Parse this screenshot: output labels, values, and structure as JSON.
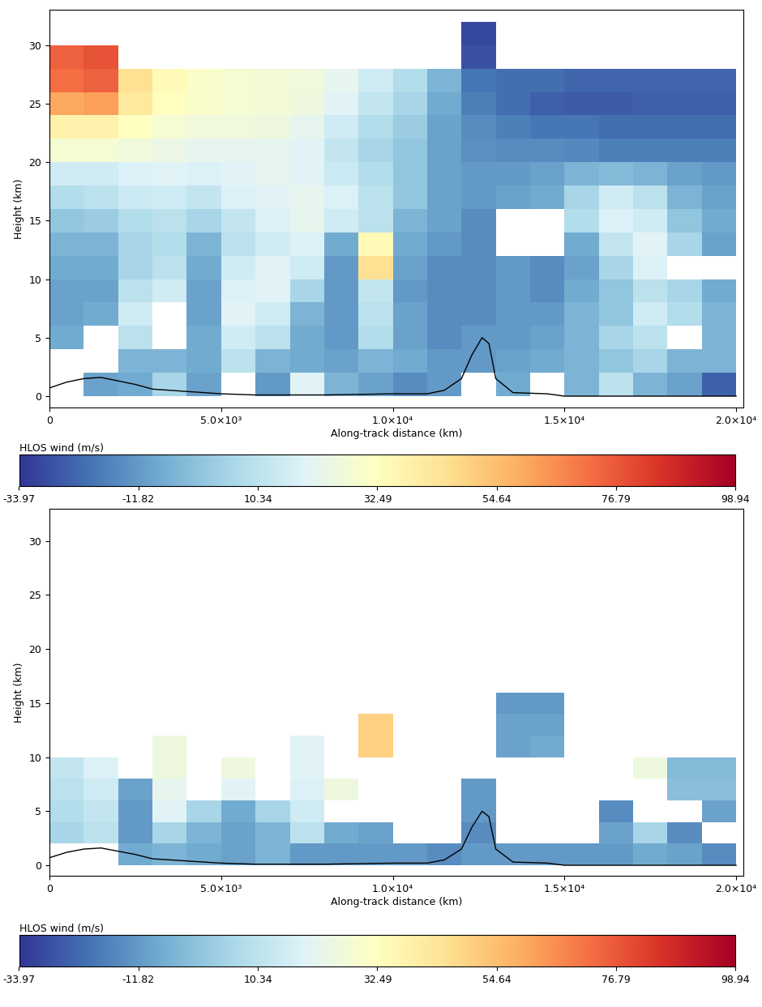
{
  "chart_data": [
    {
      "type": "heatmap",
      "xlabel": "Along-track distance (km)",
      "ylabel": "Height (km)",
      "xlim": [
        0,
        20200
      ],
      "ylim": [
        -1,
        33
      ],
      "xticks": [
        0,
        {
          "value": 5000,
          "label": "5.0×10³"
        },
        {
          "value": 10000,
          "label": "1.0×10⁴"
        },
        {
          "value": 15000,
          "label": "1.5×10⁴"
        },
        {
          "value": 20000,
          "label": "2.0×10⁴"
        }
      ],
      "yticks": [
        0,
        5,
        10,
        15,
        20,
        25,
        30
      ],
      "x_edges": [
        0,
        1000,
        2000,
        3000,
        4000,
        5000,
        6000,
        7000,
        8000,
        9000,
        10000,
        11000,
        12000,
        13000,
        14000,
        15000,
        16000,
        17000,
        18000,
        19000,
        20000
      ],
      "y_edges": [
        0,
        2,
        4,
        6,
        8,
        10,
        12,
        14,
        16,
        18,
        20,
        22,
        24,
        26,
        28,
        30,
        32
      ],
      "values": [
        [
          null,
          -10,
          -8,
          5,
          -10,
          null,
          -12,
          20,
          -5,
          -10,
          -15,
          -12,
          null,
          -8,
          null,
          -5,
          10,
          -5,
          -10,
          -25
        ],
        [
          null,
          null,
          -5,
          -5,
          -8,
          10,
          -5,
          -8,
          -10,
          -5,
          -8,
          -12,
          -12,
          -10,
          -8,
          -5,
          0,
          5,
          -5,
          -5
        ],
        [
          -8,
          null,
          10,
          null,
          -8,
          15,
          10,
          -8,
          -12,
          8,
          -10,
          -15,
          -12,
          -12,
          -10,
          -5,
          5,
          10,
          null,
          -5
        ],
        [
          -10,
          -8,
          15,
          null,
          -10,
          20,
          15,
          -5,
          -12,
          10,
          -10,
          -15,
          -15,
          -12,
          -12,
          -5,
          0,
          15,
          8,
          -5
        ],
        [
          -10,
          -10,
          10,
          15,
          -10,
          18,
          20,
          5,
          -12,
          12,
          -12,
          -15,
          -15,
          -12,
          -15,
          -8,
          0,
          10,
          5,
          -8
        ],
        [
          -8,
          -8,
          5,
          10,
          -8,
          15,
          20,
          15,
          -12,
          45,
          -10,
          -15,
          -15,
          -12,
          -15,
          -10,
          5,
          18,
          null,
          null
        ],
        [
          -5,
          -5,
          5,
          8,
          -5,
          10,
          15,
          18,
          -8,
          35,
          -8,
          -12,
          -15,
          null,
          null,
          -8,
          12,
          20,
          5,
          -10
        ],
        [
          0,
          2,
          8,
          10,
          5,
          12,
          18,
          22,
          15,
          10,
          -5,
          -10,
          -15,
          null,
          null,
          8,
          18,
          15,
          0,
          -8
        ],
        [
          8,
          10,
          14,
          15,
          12,
          18,
          20,
          22,
          18,
          10,
          0,
          -10,
          -12,
          -10,
          -8,
          5,
          15,
          10,
          -5,
          -10
        ],
        [
          15,
          15,
          18,
          20,
          18,
          20,
          22,
          20,
          14,
          8,
          0,
          -10,
          -12,
          -12,
          -10,
          -5,
          -3,
          -5,
          -10,
          -12
        ],
        [
          28,
          28,
          26,
          24,
          22,
          22,
          22,
          20,
          12,
          5,
          0,
          -10,
          -14,
          -15,
          -15,
          -16,
          -18,
          -18,
          -18,
          -18
        ],
        [
          38,
          38,
          32,
          28,
          26,
          26,
          25,
          22,
          15,
          8,
          2,
          -10,
          -15,
          -18,
          -20,
          -20,
          -22,
          -22,
          -22,
          -22
        ],
        [
          60,
          62,
          42,
          33,
          30,
          28,
          27,
          25,
          20,
          12,
          5,
          -8,
          -18,
          -22,
          -25,
          -26,
          -26,
          -25,
          -25,
          -25
        ],
        [
          72,
          75,
          45,
          35,
          30,
          28,
          27,
          26,
          22,
          15,
          8,
          -5,
          -20,
          -22,
          -22,
          -24,
          -24,
          -24,
          -24,
          -24
        ],
        [
          75,
          78,
          null,
          null,
          null,
          null,
          null,
          null,
          null,
          null,
          null,
          null,
          -28,
          null,
          null,
          null,
          null,
          null,
          null,
          null
        ],
        [
          null,
          null,
          null,
          null,
          null,
          null,
          null,
          null,
          null,
          null,
          null,
          null,
          -30,
          null,
          null,
          null,
          null,
          null,
          null,
          null
        ]
      ],
      "terrain": {
        "color": "#000000",
        "x": [
          0,
          500,
          1000,
          1500,
          2000,
          2500,
          3000,
          3500,
          4000,
          5000,
          6000,
          8000,
          10000,
          11000,
          11500,
          12000,
          12300,
          12600,
          12800,
          13000,
          13500,
          14500,
          15000,
          20000
        ],
        "y": [
          0.7,
          1.2,
          1.5,
          1.6,
          1.3,
          1.0,
          0.6,
          0.5,
          0.4,
          0.2,
          0.1,
          0.1,
          0.2,
          0.2,
          0.5,
          1.5,
          3.5,
          5.0,
          4.5,
          1.5,
          0.3,
          0.2,
          0.0,
          0.0
        ]
      },
      "colorbar": {
        "label": "HLOS wind (m/s)",
        "range": [
          -33.97,
          98.94
        ],
        "ticks": [
          -33.97,
          -11.82,
          10.34,
          32.49,
          54.64,
          76.79,
          98.94
        ]
      }
    },
    {
      "type": "heatmap",
      "xlabel": "Along-track distance (km)",
      "ylabel": "Height (km)",
      "xlim": [
        0,
        20200
      ],
      "ylim": [
        -1,
        33
      ],
      "xticks": [
        0,
        {
          "value": 5000,
          "label": "5.0×10³"
        },
        {
          "value": 10000,
          "label": "1.0×10⁴"
        },
        {
          "value": 15000,
          "label": "1.5×10⁴"
        },
        {
          "value": 20000,
          "label": "2.0×10⁴"
        }
      ],
      "yticks": [
        0,
        5,
        10,
        15,
        20,
        25,
        30
      ],
      "x_edges": [
        0,
        1000,
        2000,
        3000,
        4000,
        5000,
        6000,
        7000,
        8000,
        9000,
        10000,
        11000,
        12000,
        13000,
        14000,
        15000,
        16000,
        17000,
        18000,
        19000,
        20000
      ],
      "y_edges": [
        0,
        2,
        4,
        6,
        8,
        10,
        12,
        14,
        16
      ],
      "values": [
        [
          null,
          null,
          -8,
          -5,
          -8,
          -10,
          -5,
          -12,
          -12,
          -12,
          -12,
          -15,
          -12,
          -12,
          -12,
          -12,
          -12,
          -8,
          -10,
          -15
        ],
        [
          5,
          10,
          -12,
          5,
          -5,
          -10,
          -5,
          10,
          -8,
          -10,
          null,
          null,
          -15,
          null,
          null,
          null,
          -10,
          5,
          -15,
          null
        ],
        [
          8,
          12,
          -12,
          20,
          5,
          -8,
          5,
          15,
          null,
          null,
          null,
          null,
          -12,
          null,
          null,
          null,
          -15,
          null,
          null,
          -10
        ],
        [
          10,
          15,
          -10,
          22,
          null,
          20,
          null,
          18,
          25,
          null,
          null,
          null,
          -12,
          null,
          null,
          null,
          null,
          null,
          -2,
          -2
        ],
        [
          12,
          18,
          null,
          25,
          null,
          25,
          null,
          20,
          null,
          null,
          null,
          null,
          null,
          null,
          null,
          null,
          null,
          25,
          -3,
          -3
        ],
        [
          null,
          null,
          null,
          25,
          null,
          null,
          null,
          20,
          null,
          50,
          null,
          null,
          null,
          -10,
          -8,
          null,
          null,
          null,
          null,
          null
        ],
        [
          null,
          null,
          null,
          null,
          null,
          null,
          null,
          null,
          null,
          50,
          null,
          null,
          null,
          -10,
          -10,
          null,
          null,
          null,
          null,
          null
        ],
        [
          null,
          null,
          null,
          null,
          null,
          null,
          null,
          null,
          null,
          null,
          null,
          null,
          null,
          -12,
          -12,
          null,
          null,
          null,
          null,
          null
        ]
      ],
      "terrain": {
        "color": "#000000",
        "x": [
          0,
          500,
          1000,
          1500,
          2000,
          2500,
          3000,
          3500,
          4000,
          5000,
          6000,
          8000,
          10000,
          11000,
          11500,
          12000,
          12300,
          12600,
          12800,
          13000,
          13500,
          14500,
          15000,
          20000
        ],
        "y": [
          0.7,
          1.2,
          1.5,
          1.6,
          1.3,
          1.0,
          0.6,
          0.5,
          0.4,
          0.2,
          0.1,
          0.1,
          0.2,
          0.2,
          0.5,
          1.5,
          3.5,
          5.0,
          4.5,
          1.5,
          0.3,
          0.2,
          0.0,
          0.0
        ]
      },
      "colorbar": {
        "label": "HLOS wind (m/s)",
        "range": [
          -33.97,
          98.94
        ],
        "ticks": [
          -33.97,
          -11.82,
          10.34,
          32.49,
          54.64,
          76.79,
          98.94
        ]
      }
    }
  ]
}
